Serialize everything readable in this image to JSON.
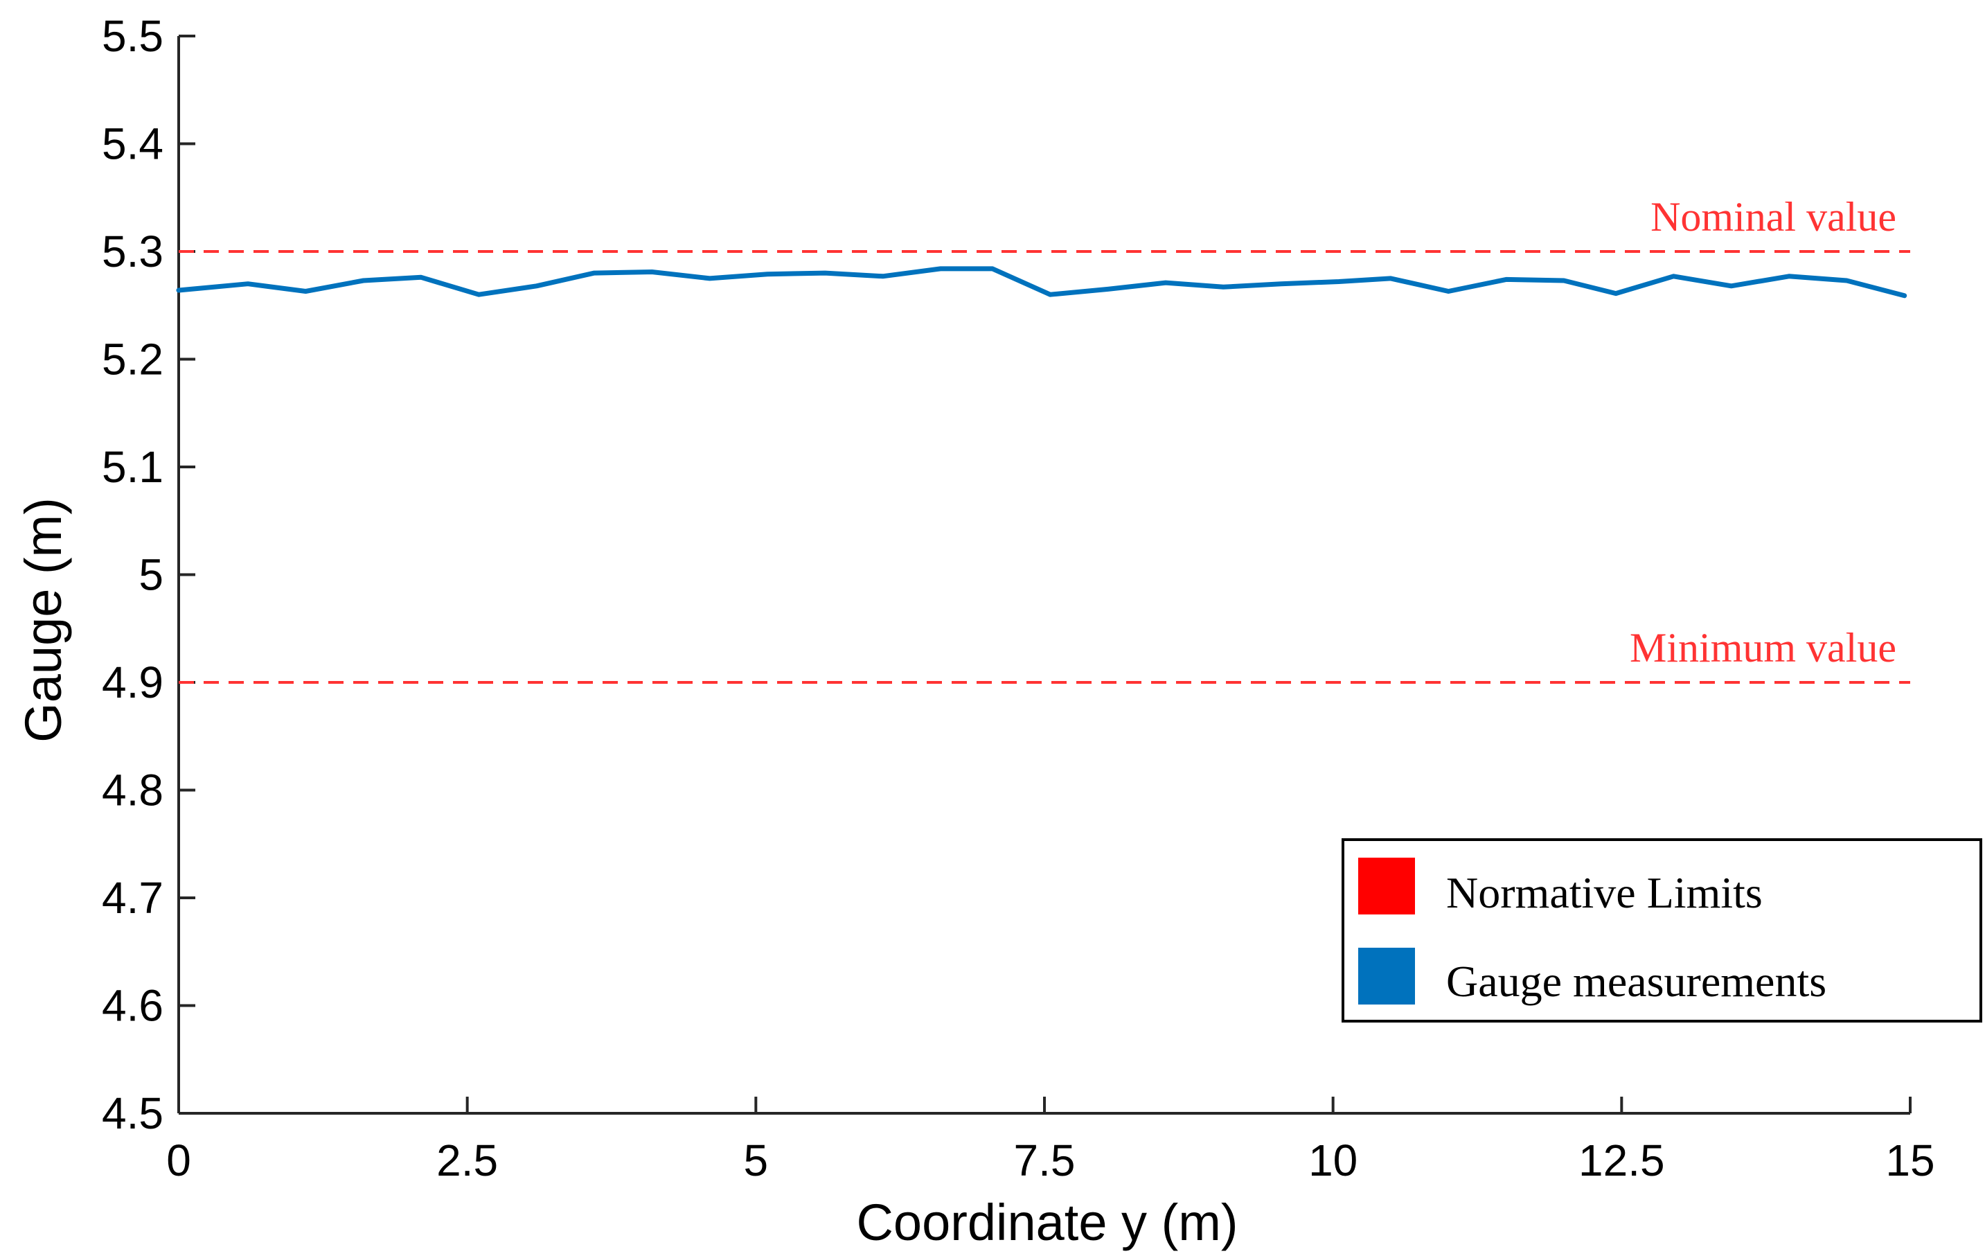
{
  "chart_data": {
    "type": "line",
    "title": "",
    "xlabel": "Coordinate y (m)",
    "ylabel": "Gauge (m)",
    "xlim": [
      0,
      15
    ],
    "ylim": [
      4.5,
      5.5
    ],
    "xticks": [
      "0",
      "2.5",
      "5",
      "7.5",
      "10",
      "12.5",
      "15"
    ],
    "yticks": [
      "4.5",
      "4.6",
      "4.7",
      "4.8",
      "4.9",
      "5",
      "5.1",
      "5.2",
      "5.3",
      "5.4",
      "5.5"
    ],
    "grid": false,
    "series": [
      {
        "name": "Gauge measurements",
        "color": "#0072BD",
        "x": [
          0,
          0.6,
          1.1,
          1.6,
          2.1,
          2.6,
          3.1,
          3.6,
          4.1,
          4.6,
          5.1,
          5.6,
          6.1,
          6.6,
          7.05,
          7.55,
          8.05,
          8.55,
          9.05,
          9.55,
          10.05,
          10.5,
          11.0,
          11.5,
          12.0,
          12.45,
          12.95,
          13.45,
          13.95,
          14.45,
          14.95
        ],
        "y": [
          5.264,
          5.27,
          5.263,
          5.273,
          5.276,
          5.26,
          5.268,
          5.28,
          5.281,
          5.275,
          5.279,
          5.28,
          5.277,
          5.284,
          5.284,
          5.26,
          5.265,
          5.271,
          5.267,
          5.27,
          5.272,
          5.275,
          5.263,
          5.274,
          5.273,
          5.261,
          5.277,
          5.268,
          5.277,
          5.273,
          5.259
        ]
      }
    ],
    "reference_lines": [
      {
        "name": "Nominal value",
        "y": 5.3,
        "color": "#FF3333"
      },
      {
        "name": "Minimum value",
        "y": 4.9,
        "color": "#FF3333"
      }
    ],
    "legend": {
      "position": "bottom-right",
      "entries": [
        {
          "label": "Normative Limits",
          "color": "#FF0000"
        },
        {
          "label": "Gauge measurements",
          "color": "#0072BD"
        }
      ]
    }
  }
}
